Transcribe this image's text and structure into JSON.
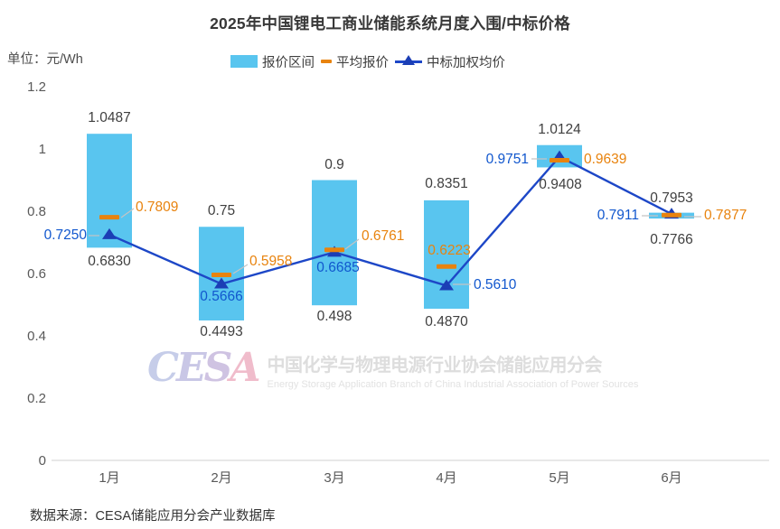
{
  "header": {
    "title": "2025年中国锂电工商业储能系统月度入围/中标价格",
    "unit_label": "单位：元/Wh"
  },
  "legend": {
    "items": [
      {
        "label": "报价区间",
        "swatch": "cyan-bar-swatch"
      },
      {
        "label": "平均报价",
        "swatch": "orange-dash-swatch"
      },
      {
        "label": "中标加权均价",
        "swatch": "blue-line-triangle-swatch"
      }
    ]
  },
  "watermark": {
    "letters": [
      "C",
      "E",
      "S",
      "A"
    ],
    "cn": "中国化学与物理电源行业协会储能应用分会",
    "en": "Energy Storage Application Branch of China Industrial Association of Power Sources"
  },
  "footer": {
    "source": "数据来源：CESA储能应用分会产业数据库"
  },
  "colors": {
    "bar": "#59C5EF",
    "avg_dash": "#E8830E",
    "line": "#1D47C7",
    "triangle": "#1B3EB5",
    "blue_label": "#1157CE",
    "orange_label": "#E8830E",
    "dark_label": "#3F3F3F",
    "axis_text": "#595959",
    "axis_line": "#D9D9D9",
    "leader_line": "#C4C4C4"
  },
  "chart_data": {
    "type": "bar",
    "title": "2025年中国锂电工商业储能系统月度入围/中标价格",
    "unit": "元/Wh",
    "categories": [
      "1月",
      "2月",
      "3月",
      "4月",
      "5月",
      "6月"
    ],
    "ylim": [
      0,
      1.2
    ],
    "yticks": [
      "0",
      "0.2",
      "0.4",
      "0.6",
      "0.8",
      "1",
      "1.2"
    ],
    "grid": false,
    "legend_position": "top",
    "series": [
      {
        "name": "报价区间",
        "type": "range-bar",
        "low": [
          "0.6830",
          "0.4493",
          "0.498",
          "0.4870",
          "0.9408",
          "0.7766"
        ],
        "high": [
          "1.0487",
          "0.75",
          "0.9",
          "0.8351",
          "1.0124",
          "0.7953"
        ]
      },
      {
        "name": "平均报价",
        "type": "dash-marker",
        "values": [
          "0.7809",
          "0.5958",
          "0.6761",
          "0.6223",
          "0.9639",
          "0.7877"
        ]
      },
      {
        "name": "中标加权均价",
        "type": "line",
        "values": [
          "0.7250",
          "0.5666",
          "0.6685",
          "0.5610",
          "0.9751",
          "0.7911"
        ]
      }
    ]
  }
}
